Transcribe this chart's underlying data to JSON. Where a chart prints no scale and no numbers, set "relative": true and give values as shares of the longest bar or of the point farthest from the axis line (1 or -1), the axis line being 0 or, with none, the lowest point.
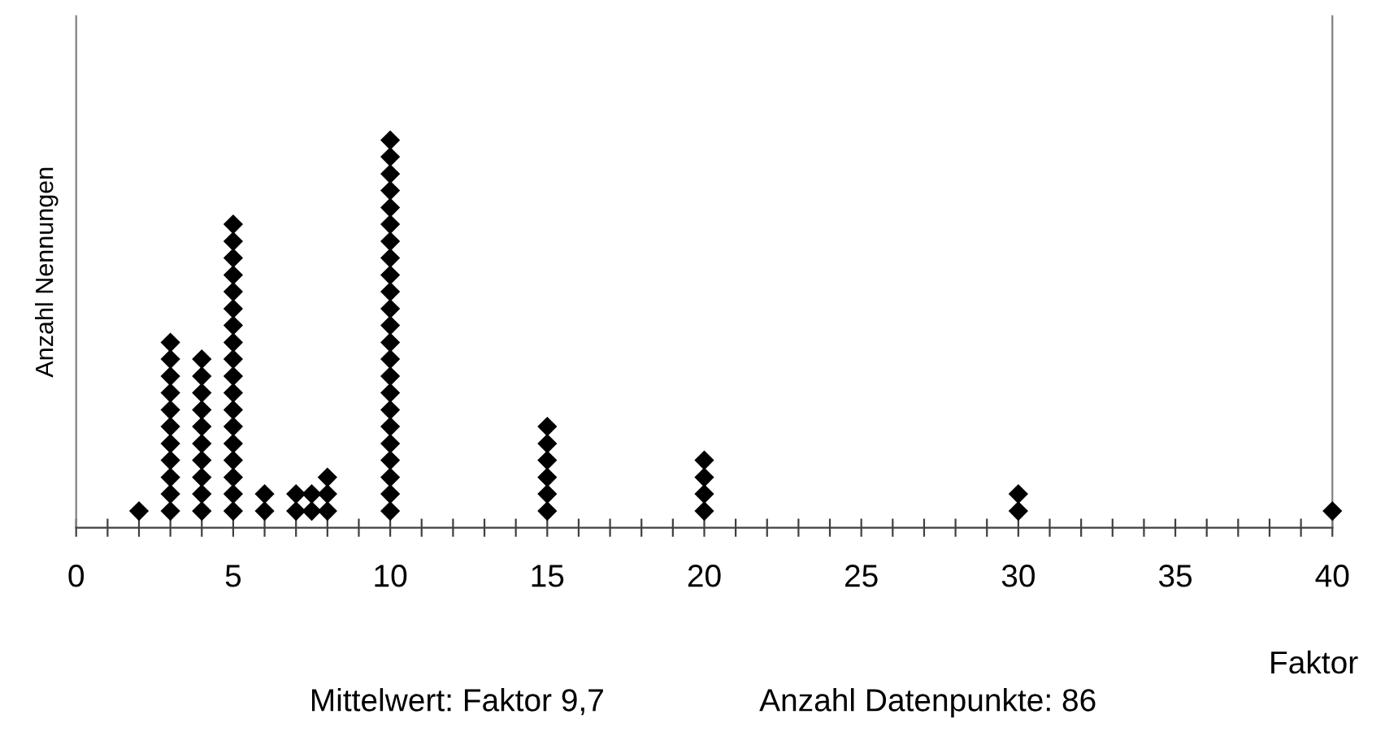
{
  "chart_data": {
    "type": "scatter",
    "relative": true,
    "ylabel": "Anzahl Nennungen",
    "xlabel": "Faktor",
    "xlim": [
      0,
      40
    ],
    "xticks": [
      0,
      {
        "value": 1,
        "label": null
      },
      {
        "value": 2,
        "label": null
      },
      {
        "value": 3,
        "label": null
      },
      {
        "value": 4,
        "label": null
      },
      5,
      {
        "value": 6,
        "label": null
      },
      {
        "value": 7,
        "label": null
      },
      {
        "value": 8,
        "label": null
      },
      {
        "value": 9,
        "label": null
      },
      10,
      {
        "value": 11,
        "label": null
      },
      {
        "value": 12,
        "label": null
      },
      {
        "value": 13,
        "label": null
      },
      {
        "value": 14,
        "label": null
      },
      15,
      {
        "value": 16,
        "label": null
      },
      {
        "value": 17,
        "label": null
      },
      {
        "value": 18,
        "label": null
      },
      {
        "value": 19,
        "label": null
      },
      20,
      {
        "value": 21,
        "label": null
      },
      {
        "value": 22,
        "label": null
      },
      {
        "value": 23,
        "label": null
      },
      {
        "value": 24,
        "label": null
      },
      25,
      {
        "value": 26,
        "label": null
      },
      {
        "value": 27,
        "label": null
      },
      {
        "value": 28,
        "label": null
      },
      {
        "value": 29,
        "label": null
      },
      30,
      {
        "value": 31,
        "label": null
      },
      {
        "value": 32,
        "label": null
      },
      {
        "value": 33,
        "label": null
      },
      {
        "value": 34,
        "label": null
      },
      35,
      {
        "value": 36,
        "label": null
      },
      {
        "value": 37,
        "label": null
      },
      {
        "value": 38,
        "label": null
      },
      {
        "value": 39,
        "label": null
      },
      40
    ],
    "marker": "diamond",
    "grid": false,
    "series": [
      {
        "color": "#000000",
        "x": [
          2,
          3,
          3,
          3,
          3,
          3,
          3,
          3,
          3,
          3,
          3,
          3,
          4,
          4,
          4,
          4,
          4,
          4,
          4,
          4,
          4,
          4,
          5,
          5,
          5,
          5,
          5,
          5,
          5,
          5,
          5,
          5,
          5,
          5,
          5,
          5,
          5,
          5,
          5,
          5,
          6,
          6,
          7,
          7,
          7.5,
          7.5,
          8,
          8,
          8,
          10,
          10,
          10,
          10,
          10,
          10,
          10,
          10,
          10,
          10,
          10,
          10,
          10,
          10,
          10,
          10,
          10,
          10,
          10,
          10,
          10,
          10,
          10,
          15,
          15,
          15,
          15,
          15,
          15,
          20,
          20,
          20,
          20,
          30,
          30,
          40
        ],
        "values": [
          0.043,
          0.043,
          0.087,
          0.13,
          0.174,
          0.217,
          0.261,
          0.304,
          0.348,
          0.391,
          0.435,
          0.478,
          0.043,
          0.087,
          0.13,
          0.174,
          0.217,
          0.261,
          0.304,
          0.348,
          0.391,
          0.435,
          0.043,
          0.087,
          0.13,
          0.174,
          0.217,
          0.261,
          0.304,
          0.348,
          0.391,
          0.435,
          0.478,
          0.522,
          0.565,
          0.609,
          0.652,
          0.696,
          0.739,
          0.783,
          0.043,
          0.087,
          0.043,
          0.087,
          0.043,
          0.087,
          0.043,
          0.087,
          0.13,
          0.043,
          0.087,
          0.13,
          0.174,
          0.217,
          0.261,
          0.304,
          0.348,
          0.391,
          0.435,
          0.478,
          0.522,
          0.565,
          0.609,
          0.652,
          0.696,
          0.739,
          0.783,
          0.826,
          0.87,
          0.913,
          0.957,
          1,
          0.043,
          0.087,
          0.13,
          0.174,
          0.217,
          0.261,
          0.043,
          0.087,
          0.13,
          0.174,
          0.043,
          0.087,
          0.043
        ]
      }
    ],
    "annotations": [
      "Mittelwert: Faktor 9,7",
      "Anzahl Datenpunkte: 86"
    ]
  }
}
